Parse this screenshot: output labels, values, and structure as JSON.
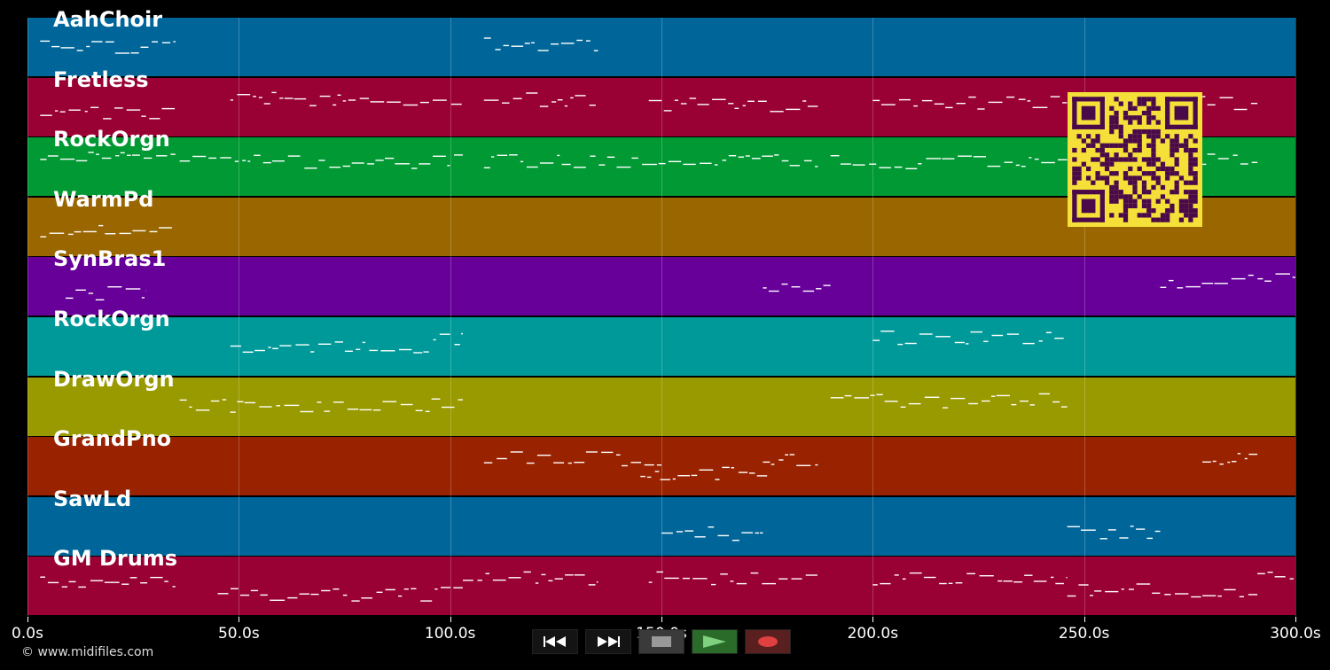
{
  "tracks": [
    {
      "name": "AahChoir",
      "color": "#00669a"
    },
    {
      "name": "Fretless",
      "color": "#990033"
    },
    {
      "name": "RockOrgn",
      "color": "#009933"
    },
    {
      "name": "WarmPd",
      "color": "#996600"
    },
    {
      "name": "SynBras1",
      "color": "#660099"
    },
    {
      "name": "RockOrgn",
      "color": "#009999"
    },
    {
      "name": "DrawOrgn",
      "color": "#999900"
    },
    {
      "name": "GrandPno",
      "color": "#992200"
    },
    {
      "name": "SawLd",
      "color": "#00669a"
    },
    {
      "name": "GM Drums",
      "color": "#990033"
    }
  ],
  "timeline": {
    "max_seconds": 300,
    "ticks": [
      "0.0s",
      "50.0s",
      "100.0s",
      "150.0s",
      "200.0s",
      "250.0s",
      "300.0s"
    ]
  },
  "copyright": "© www.midifiles.com",
  "controls": [
    {
      "name": "rewind-button",
      "icon": "rewind-icon"
    },
    {
      "name": "fast-forward-button",
      "icon": "fast-forward-icon"
    },
    {
      "name": "stop-button",
      "icon": "stop-icon"
    },
    {
      "name": "play-button",
      "icon": "play-icon"
    },
    {
      "name": "record-button",
      "icon": "record-icon"
    }
  ],
  "qr_code": {
    "icon": "qr-code-icon",
    "color_bg": "#f5e03a",
    "color_fg": "#4a0a4a"
  },
  "note_regions_seconds": [
    [
      [
        3,
        35
      ],
      [
        108,
        135
      ]
    ],
    [
      [
        3,
        35
      ],
      [
        48,
        103
      ],
      [
        108,
        135
      ],
      [
        147,
        187
      ],
      [
        200,
        246
      ],
      [
        268,
        291
      ]
    ],
    [
      [
        3,
        35
      ],
      [
        36,
        103
      ],
      [
        108,
        187
      ],
      [
        190,
        246
      ],
      [
        268,
        291
      ]
    ],
    [
      [
        3,
        35
      ]
    ],
    [
      [
        9,
        28
      ],
      [
        174,
        190
      ],
      [
        268,
        300
      ]
    ],
    [
      [
        48,
        95
      ],
      [
        96,
        103
      ],
      [
        200,
        246
      ]
    ],
    [
      [
        36,
        103
      ],
      [
        190,
        246
      ]
    ],
    [
      [
        108,
        150
      ],
      [
        145,
        175
      ],
      [
        174,
        187
      ],
      [
        278,
        291
      ]
    ],
    [
      [
        150,
        174
      ],
      [
        246,
        268
      ]
    ],
    [
      [
        3,
        35
      ],
      [
        45,
        103
      ],
      [
        103,
        135
      ],
      [
        147,
        187
      ],
      [
        200,
        246
      ],
      [
        246,
        291
      ],
      [
        291,
        300
      ]
    ]
  ]
}
